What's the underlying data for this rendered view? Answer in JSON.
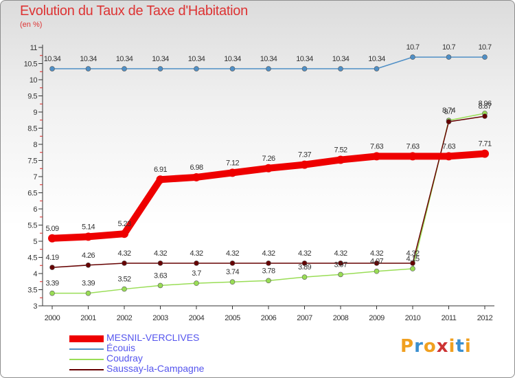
{
  "title": "Evolution du Taux de Taxe d'Habitation",
  "subtitle": "(en %)",
  "logo_text": "Proxiti",
  "chart_data": {
    "type": "line",
    "title": "Evolution du Taux de Taxe d'Habitation",
    "ylabel": "(en %)",
    "x": [
      "2000",
      "2001",
      "2002",
      "2003",
      "2004",
      "2005",
      "2006",
      "2007",
      "2008",
      "2009",
      "2010",
      "2011",
      "2012"
    ],
    "yticks": [
      "3",
      "3.5",
      "4",
      "4.5",
      "5",
      "5.5",
      "6",
      "6.5",
      "7",
      "7.5",
      "8",
      "8.5",
      "9",
      "9.5",
      "10",
      "10.5",
      "11"
    ],
    "ylim": [
      3,
      11
    ],
    "grid": false,
    "legend": "bottom-left",
    "series": [
      {
        "name": "MESNIL-VERCLIVES",
        "color": "#ee0000",
        "values": [
          5.09,
          5.14,
          5.23,
          6.91,
          6.98,
          7.12,
          7.26,
          7.37,
          7.52,
          7.63,
          7.63,
          7.63,
          7.71
        ],
        "labels": [
          "5.09",
          "5.14",
          "5.23",
          "6.91",
          "6.98",
          "7.12",
          "7.26",
          "7.37",
          "7.52",
          "7.63",
          "7.63",
          "7.63",
          "7.71"
        ]
      },
      {
        "name": "Écouis",
        "color": "#4f8fc6",
        "values": [
          10.34,
          10.34,
          10.34,
          10.34,
          10.34,
          10.34,
          10.34,
          10.34,
          10.34,
          10.34,
          10.7,
          10.7,
          10.7
        ],
        "labels": [
          "10.34",
          "10.34",
          "10.34",
          "10.34",
          "10.34",
          "10.34",
          "10.34",
          "10.34",
          "10.34",
          "10.34",
          "10.7",
          "10.7",
          "10.7"
        ]
      },
      {
        "name": "Coudray",
        "color": "#99dd55",
        "values": [
          3.39,
          3.39,
          3.52,
          3.63,
          3.7,
          3.74,
          3.78,
          3.89,
          3.97,
          4.07,
          4.15,
          8.74,
          8.96
        ],
        "labels": [
          "3.39",
          "3.39",
          "3.52",
          "3.63",
          "3.7",
          "3.74",
          "3.78",
          "3.89",
          "3.97",
          "4.07",
          "4.15",
          "8.74",
          "8.96"
        ]
      },
      {
        "name": "Saussay-la-Campagne",
        "color": "#660000",
        "values": [
          4.19,
          4.26,
          4.32,
          4.32,
          4.32,
          4.32,
          4.32,
          4.32,
          4.32,
          4.32,
          4.32,
          8.7,
          8.87
        ],
        "labels": [
          "4.19",
          "4.26",
          "4.32",
          "4.32",
          "4.32",
          "4.32",
          "4.32",
          "4.32",
          "4.32",
          "4.32",
          "4.32",
          "8.7",
          "8.87"
        ]
      }
    ]
  }
}
